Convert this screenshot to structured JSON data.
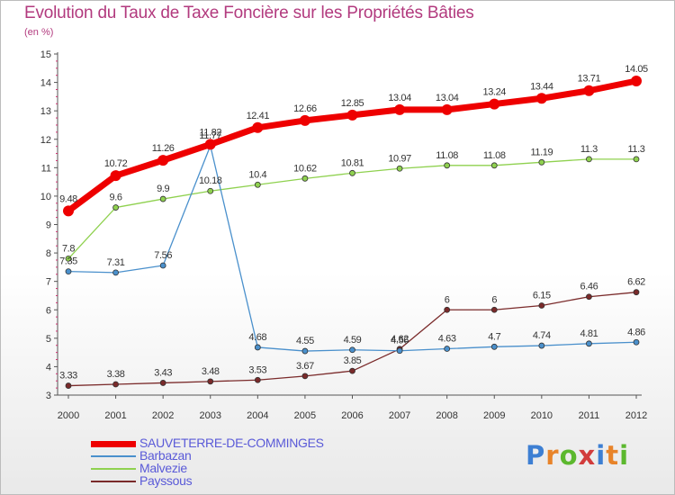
{
  "page": {
    "title": "Evolution du Taux de Taxe Foncière sur les Propriétés Bâties",
    "unit": "(en %)"
  },
  "brand": {
    "letters": [
      "P",
      "r",
      "o",
      "x",
      "i",
      "t",
      "i"
    ],
    "colors": [
      "#3d7fd3",
      "#e8842a",
      "#5cb82e",
      "#d23c3c",
      "#3d7fd3",
      "#e8842a",
      "#5cb82e"
    ]
  },
  "chart_data": {
    "type": "line",
    "title": "Evolution du Taux de Taxe Foncière sur les Propriétés Bâties",
    "ylabel": "(en %)",
    "x": [
      "2000",
      "2001",
      "2002",
      "2003",
      "2004",
      "2005",
      "2006",
      "2007",
      "2008",
      "2009",
      "2010",
      "2011",
      "2012"
    ],
    "ylim": [
      3,
      15
    ],
    "yticks": [
      3,
      4,
      5,
      6,
      7,
      8,
      9,
      10,
      11,
      12,
      13,
      14,
      15
    ],
    "grid": false,
    "legend_position": "bottom-left",
    "series": [
      {
        "name": "SAUVETERRE-DE-COMMINGES",
        "color": "#ee0000",
        "values": [
          9.48,
          10.72,
          11.26,
          11.82,
          12.41,
          12.66,
          12.85,
          13.04,
          13.04,
          13.24,
          13.44,
          13.71,
          14.05
        ],
        "labels": [
          "9.48",
          "10.72",
          "11.26",
          "11.82",
          "12.41",
          "12.66",
          "12.85",
          "13.04",
          "13.04",
          "13.24",
          "13.44",
          "13.71",
          "14.05"
        ]
      },
      {
        "name": "Barbazan",
        "color": "#4a90cc",
        "values": [
          7.35,
          7.31,
          7.56,
          11.77,
          4.68,
          4.55,
          4.59,
          4.56,
          4.63,
          4.7,
          4.74,
          4.81,
          4.86
        ],
        "labels": [
          "7.35",
          "7.31",
          "7.56",
          "11.77",
          "4.68",
          "4.55",
          "4.59",
          "4.56",
          "4.63",
          "4.7",
          "4.74",
          "4.81",
          "4.86"
        ]
      },
      {
        "name": "Malvezie",
        "color": "#8fd14f",
        "values": [
          7.8,
          9.6,
          9.9,
          10.18,
          10.4,
          10.62,
          10.81,
          10.97,
          11.08,
          11.08,
          11.19,
          11.3,
          11.3
        ],
        "labels": [
          "7.8",
          "9.6",
          "9.9",
          "10.18",
          "10.4",
          "10.62",
          "10.81",
          "10.97",
          "11.08",
          "11.08",
          "11.19",
          "11.3",
          "11.3"
        ]
      },
      {
        "name": "Payssous",
        "color": "#7a2a2a",
        "values": [
          3.33,
          3.38,
          3.43,
          3.48,
          3.53,
          3.67,
          3.85,
          4.62,
          6,
          6,
          6.15,
          6.46,
          6.62
        ],
        "labels": [
          "3.33",
          "3.38",
          "3.43",
          "3.48",
          "3.53",
          "3.67",
          "3.85",
          "4.62",
          "6",
          "6",
          "6.15",
          "6.46",
          "6.62"
        ]
      }
    ]
  }
}
